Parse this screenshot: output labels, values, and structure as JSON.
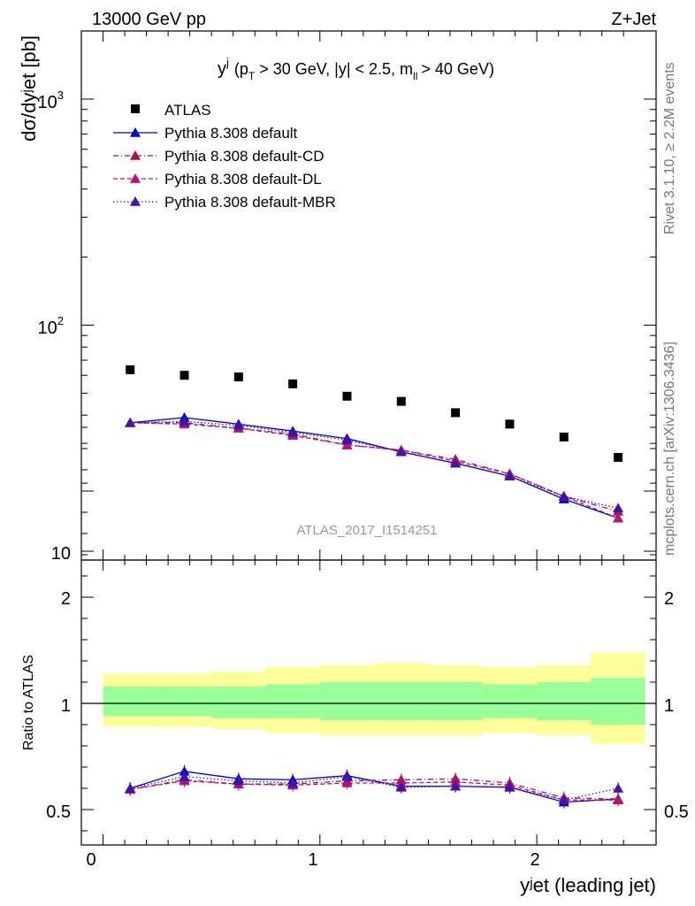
{
  "header": {
    "left": "13000 GeV pp",
    "right": "Z+Jet"
  },
  "side_text": {
    "rivet": "Rivet 3.1.10, ≥ 2.2M events",
    "mcplots": "mcplots.cern.ch [arXiv:1306.3436]"
  },
  "watermark": "ATLAS_2017_I1514251",
  "main_panel": {
    "ylabel": "dσ/dyʲet [pb]",
    "title_main": "y",
    "title_sup": "j",
    "title_rest": "(p",
    "title_sub": "T",
    "title_rest2": "> 30 GeV, |y| < 2.5, m",
    "title_sub2": "ll",
    "title_rest3": "> 40 GeV)",
    "yticks": [
      "10",
      "10",
      "10"
    ],
    "ytick_exps": [
      "",
      "2",
      "3"
    ]
  },
  "ratio_panel": {
    "ylabel": "Ratio to ATLAS",
    "yticks": [
      "0.5",
      "1",
      "2"
    ]
  },
  "xaxis": {
    "label": "yʲet (leading jet)",
    "ticks": [
      "0",
      "1",
      "2"
    ]
  },
  "chart_data": {
    "type": "scatter",
    "yscale": "log",
    "xlim": [
      -0.1,
      2.55
    ],
    "ylim": [
      10,
      2000
    ],
    "ratio_ylim": [
      0.35,
      2.4
    ],
    "x": [
      0.125,
      0.375,
      0.625,
      0.875,
      1.125,
      1.375,
      1.625,
      1.875,
      2.125,
      2.375
    ],
    "bin_edges": [
      0,
      0.25,
      0.5,
      0.75,
      1.0,
      1.25,
      1.5,
      1.75,
      2.0,
      2.25,
      2.5
    ],
    "series": [
      {
        "name": "ATLAS",
        "color": "#000000",
        "marker": "square",
        "values": [
          63.5,
          60.0,
          59.0,
          55.0,
          48.5,
          46.0,
          41.0,
          36.5,
          32.0,
          26.0
        ]
      },
      {
        "name": "Pythia 8.308 default",
        "color": "#0000dd",
        "line": "solid",
        "values": [
          37.0,
          39.0,
          36.5,
          34.0,
          31.5,
          27.5,
          24.5,
          21.5,
          17.0,
          14.0
        ]
      },
      {
        "name": "Pythia 8.308 default-CD",
        "color": "#aa1144",
        "line": "dashdot",
        "values": [
          37.0,
          37.0,
          35.0,
          33.0,
          29.5,
          28.0,
          25.5,
          22.0,
          17.5,
          15.0
        ]
      },
      {
        "name": "Pythia 8.308 default-DL",
        "color": "#bb1177",
        "line": "dashed",
        "values": [
          37.0,
          36.5,
          35.0,
          32.5,
          29.5,
          28.0,
          25.0,
          22.0,
          17.5,
          14.0
        ]
      },
      {
        "name": "Pythia 8.308 default-MBR",
        "color": "#4411aa",
        "line": "dotted",
        "values": [
          37.0,
          37.5,
          36.0,
          33.5,
          31.0,
          27.5,
          24.5,
          21.5,
          17.5,
          15.5
        ]
      }
    ],
    "ratios": [
      [
        0.6,
        0.68,
        0.645,
        0.64,
        0.66,
        0.61,
        0.61,
        0.605,
        0.535,
        0.55
      ],
      [
        0.595,
        0.64,
        0.62,
        0.62,
        0.635,
        0.64,
        0.645,
        0.625,
        0.555,
        0.55
      ],
      [
        0.595,
        0.635,
        0.62,
        0.615,
        0.625,
        0.625,
        0.63,
        0.615,
        0.545,
        0.545
      ],
      [
        0.6,
        0.655,
        0.635,
        0.625,
        0.655,
        0.605,
        0.61,
        0.605,
        0.545,
        0.6
      ]
    ],
    "band_inner": [
      [
        0.94,
        1.08
      ],
      [
        0.94,
        1.08
      ],
      [
        0.93,
        1.08
      ],
      [
        0.93,
        1.09
      ],
      [
        0.92,
        1.1
      ],
      [
        0.92,
        1.1
      ],
      [
        0.92,
        1.1
      ],
      [
        0.93,
        1.09
      ],
      [
        0.92,
        1.1
      ],
      [
        0.9,
        1.12
      ]
    ],
    "band_outer": [
      [
        0.89,
        1.14
      ],
      [
        0.89,
        1.14
      ],
      [
        0.88,
        1.15
      ],
      [
        0.86,
        1.17
      ],
      [
        0.85,
        1.18
      ],
      [
        0.85,
        1.19
      ],
      [
        0.85,
        1.18
      ],
      [
        0.86,
        1.17
      ],
      [
        0.85,
        1.18
      ],
      [
        0.81,
        1.24
      ]
    ]
  }
}
